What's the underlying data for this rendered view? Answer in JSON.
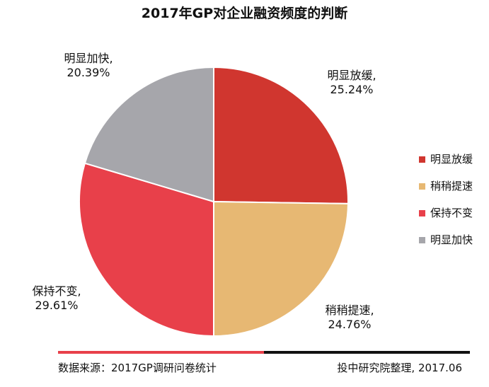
{
  "chart_data": {
    "type": "pie",
    "title": "2017年GP对企业融资频度的判断",
    "slices": [
      {
        "label": "明显放缓",
        "value": 25.24,
        "value_text": "25.24%",
        "color": "#d0362f"
      },
      {
        "label": "稍稍提速",
        "value": 24.76,
        "value_text": "24.76%",
        "color": "#e7b873"
      },
      {
        "label": "保持不变",
        "value": 29.61,
        "value_text": "29.61%",
        "color": "#e8404a"
      },
      {
        "label": "明显加快",
        "value": 20.39,
        "value_text": "20.39%",
        "color": "#a6a6ab"
      }
    ],
    "legend_placement": "right",
    "start_angle": "12-oclock",
    "direction": "clockwise"
  },
  "footer": {
    "source": "数据来源：2017GP调研问卷统计",
    "org": "投中研究院整理, 2017.06"
  }
}
